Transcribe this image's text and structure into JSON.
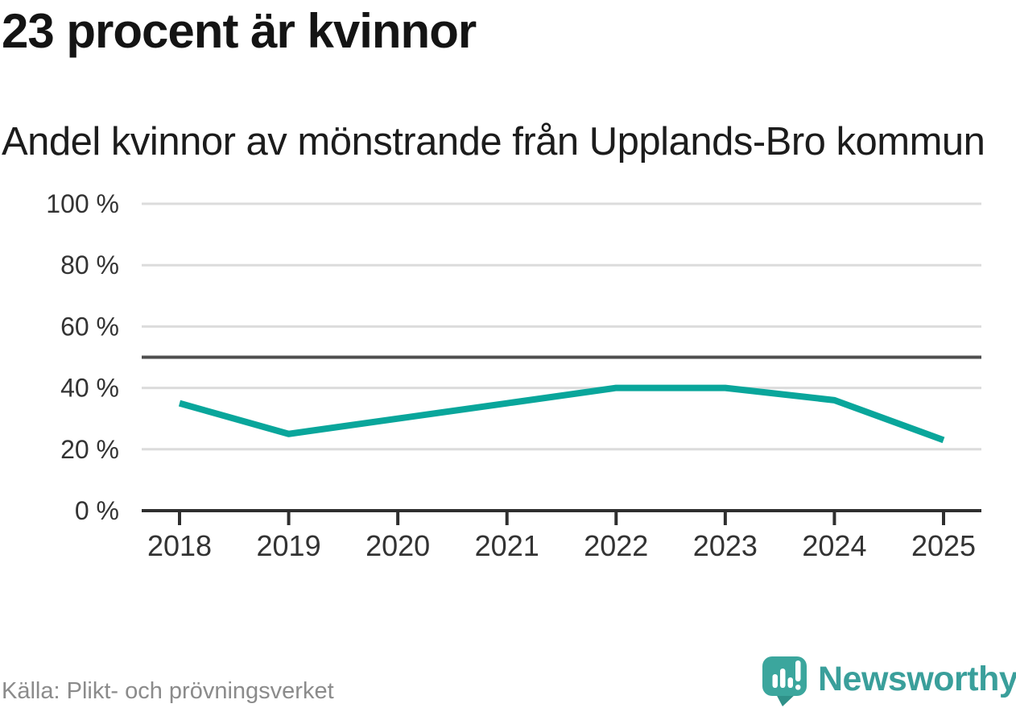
{
  "header": {
    "title": "23 procent är kvinnor",
    "subtitle": "Andel kvinnor av mönstrande från Upplands-Bro kommun"
  },
  "chart_data": {
    "type": "line",
    "title": "23 procent är kvinnor",
    "subtitle": "Andel kvinnor av mönstrande från Upplands-Bro kommun",
    "x": [
      "2018",
      "2019",
      "2020",
      "2021",
      "2022",
      "2023",
      "2024",
      "2025"
    ],
    "series": [
      {
        "name": "Andel kvinnor av mönstrande",
        "values": [
          35,
          25,
          30,
          35,
          40,
          40,
          36,
          23
        ]
      }
    ],
    "unit": "%",
    "ylim": [
      0,
      100
    ],
    "yticks": [
      0,
      20,
      40,
      60,
      80,
      100
    ],
    "ytick_labels": [
      "0 %",
      "20 %",
      "40 %",
      "60 %",
      "80 %",
      "100 %"
    ],
    "reference_line": 50,
    "grid": true,
    "legend": "none",
    "colors": {
      "line": "#09a69b",
      "grid": "#dcdcdc",
      "reference": "#4f4f4f",
      "axis": "#2f2f2f",
      "tick_text": "#333333"
    }
  },
  "footer": {
    "source": "Källa: Plikt- och prövningsverket",
    "logo_text": "Newsworthy",
    "logo_colors": {
      "bubble": "#3ba69d",
      "tail": "#2f9189",
      "marks": "#ffffff",
      "text": "#3a9f9b"
    }
  }
}
